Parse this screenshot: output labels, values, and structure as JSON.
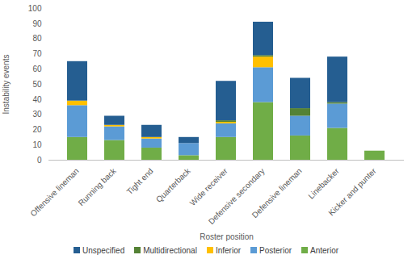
{
  "chart_data": {
    "type": "bar",
    "stacked": true,
    "x_label": "Roster position",
    "y_label": "Instability events",
    "categories": [
      "Offensive lineman",
      "Running back",
      "Tight end",
      "Quarterback",
      "Wide receiver",
      "Defensive secondary",
      "Defensive lineman",
      "Linebacker",
      "Kicker and punter"
    ],
    "series": [
      {
        "name": "Anterior",
        "color": "#70ad47",
        "values": [
          15,
          13,
          8,
          3,
          15,
          38,
          16,
          21,
          6
        ]
      },
      {
        "name": "Posterior",
        "color": "#5b9bd5",
        "values": [
          21,
          9,
          6,
          8,
          9,
          23,
          13,
          16,
          0
        ]
      },
      {
        "name": "Inferior",
        "color": "#ffc000",
        "values": [
          3,
          1,
          1,
          0,
          1,
          7,
          0,
          0,
          0
        ]
      },
      {
        "name": "Multidirectional",
        "color": "#548235",
        "values": [
          0,
          0,
          0,
          0,
          1,
          1,
          5,
          1,
          0
        ]
      },
      {
        "name": "Unspecified",
        "color": "#255e91",
        "values": [
          26,
          6,
          8,
          4,
          26,
          22,
          20,
          30,
          0
        ]
      }
    ],
    "ylim": [
      0,
      100
    ],
    "yticks": [
      0,
      10,
      20,
      30,
      40,
      50,
      60,
      70,
      80,
      90,
      100
    ],
    "grid": false,
    "legend": "bottom"
  }
}
